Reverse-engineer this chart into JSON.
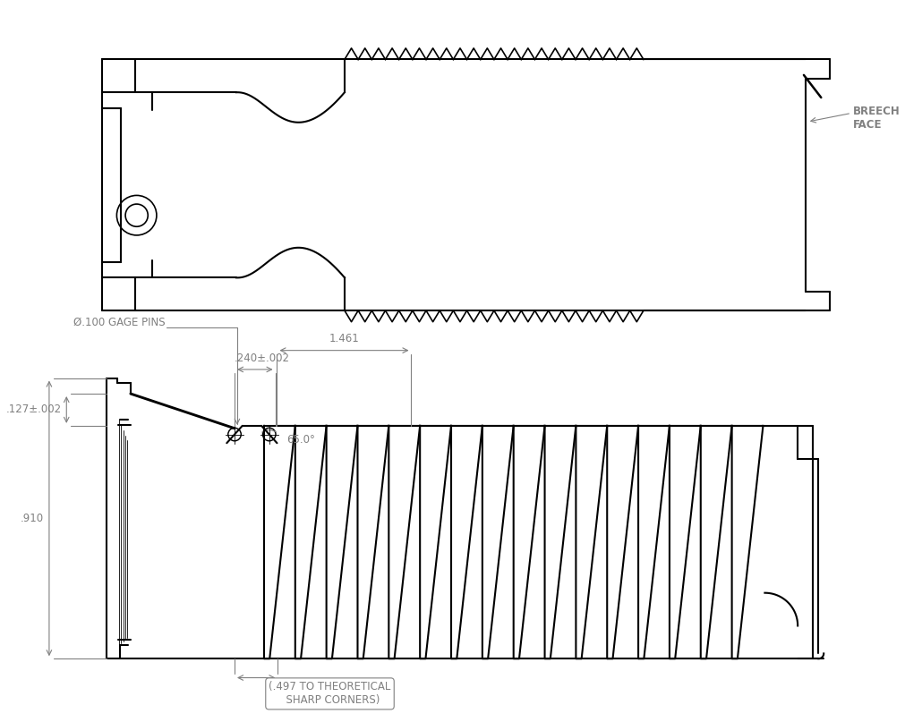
{
  "bg_color": "#ffffff",
  "line_color": "#000000",
  "dim_color": "#808080",
  "text_color": "#808080",
  "linewidth": 1.5,
  "dim_linewidth": 0.8,
  "annotations": {
    "breech_face": "BREECH\nFACE",
    "gage_pins": "Ø.100 GAGE PINS",
    "dim_127": ".127±.002",
    "dim_910": ".910",
    "dim_1461": "1.461",
    "dim_240": ".240±.002",
    "dim_angle": "65.0°",
    "dim_497": "(.497 TO THEORETICAL\n  SHARP CORNERS)"
  }
}
